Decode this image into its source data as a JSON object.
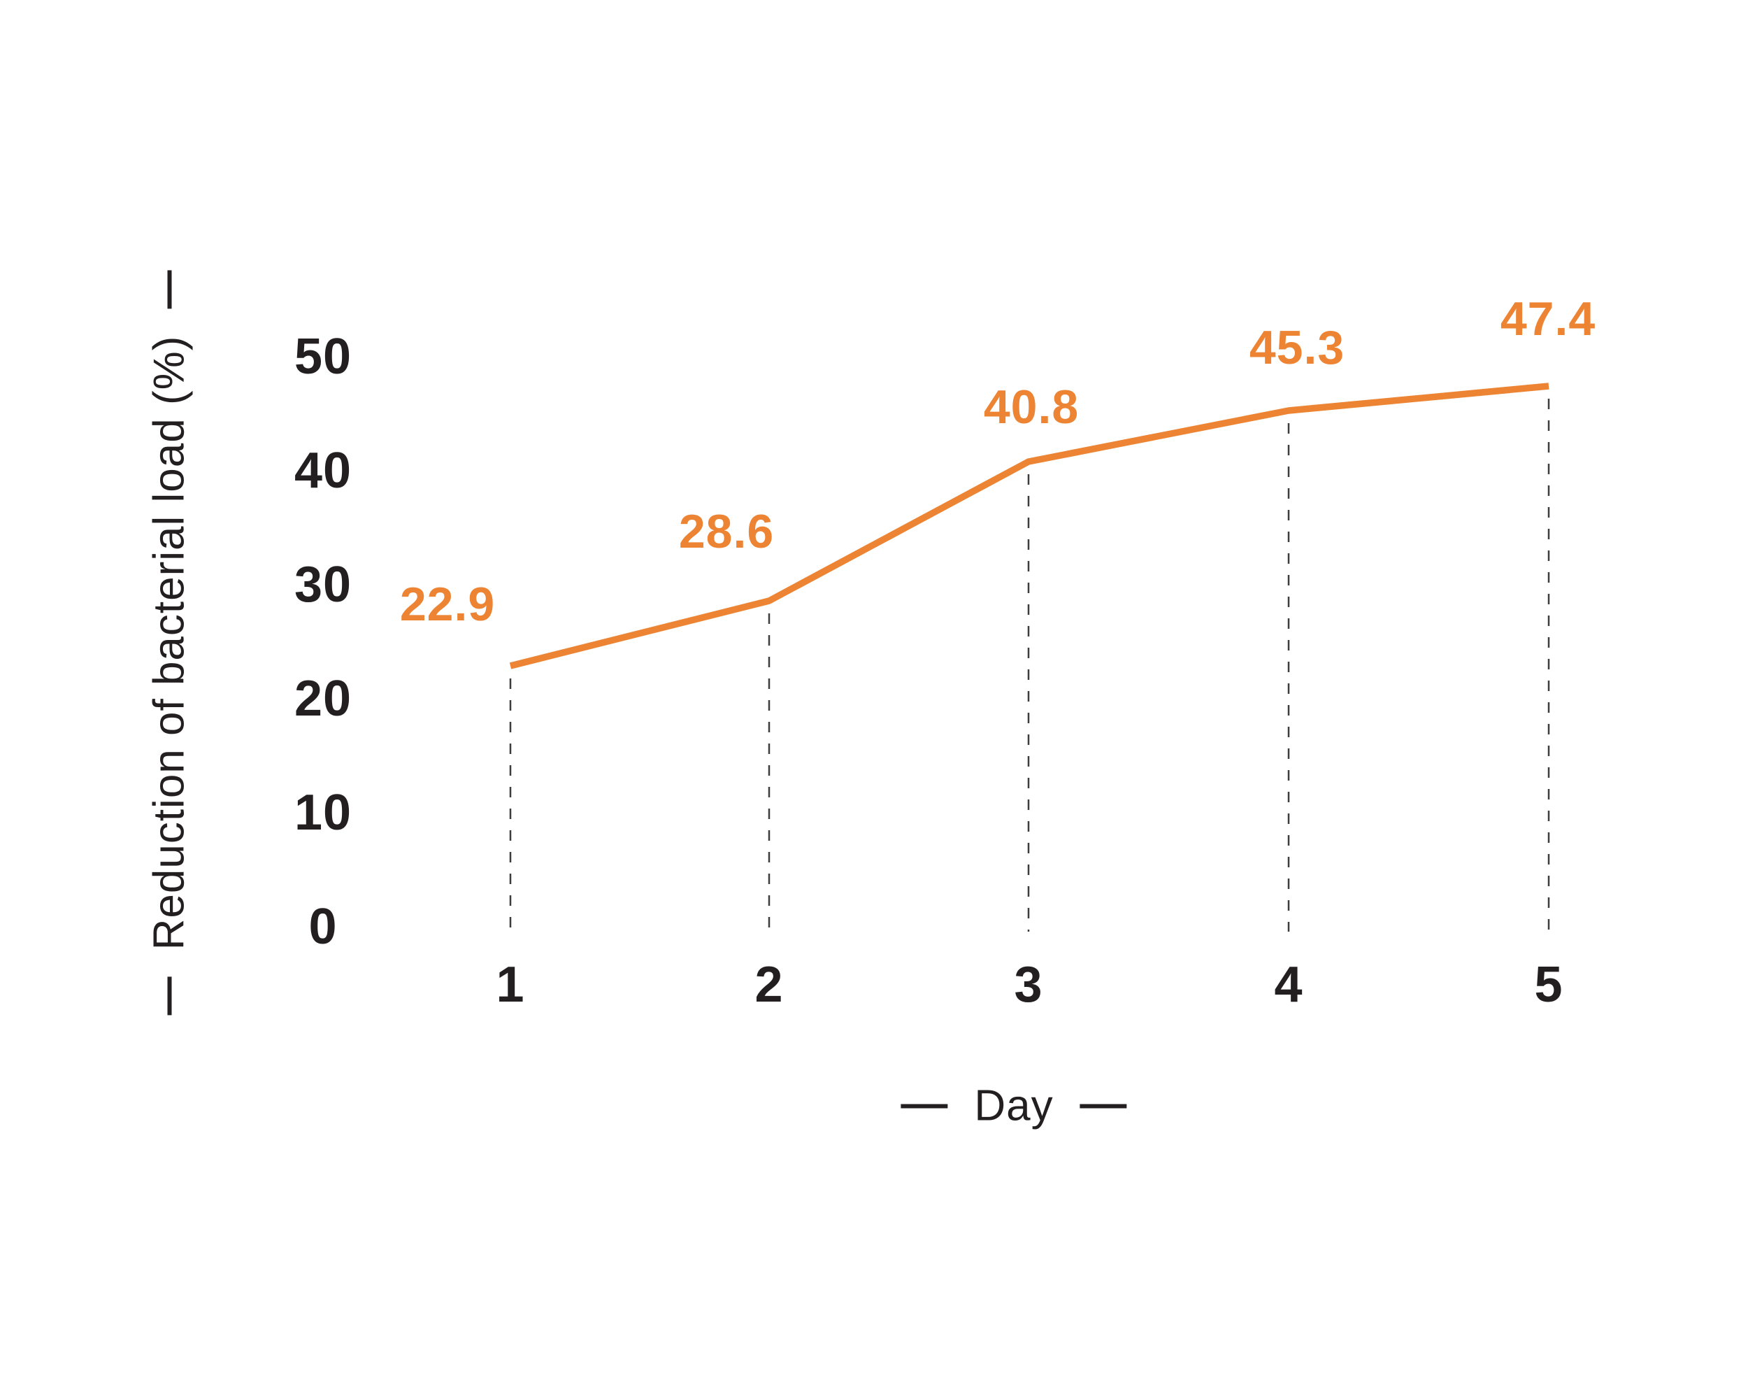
{
  "chart_data": {
    "type": "line",
    "title": "",
    "xlabel": "Day",
    "ylabel": "Reduction of bacterial load (%)",
    "x": [
      1,
      2,
      3,
      4,
      5
    ],
    "xticks": [
      "1",
      "2",
      "3",
      "4",
      "5"
    ],
    "yticks": [
      0,
      10,
      20,
      30,
      40,
      50
    ],
    "ylim": [
      0,
      55
    ],
    "series": [
      {
        "name": "Reduction of bacterial load (%)",
        "values": [
          22.9,
          28.6,
          40.8,
          45.3,
          47.4
        ]
      }
    ],
    "point_labels": [
      "22.9",
      "28.6",
      "40.8",
      "45.3",
      "47.4"
    ],
    "grid": false,
    "legend": "none",
    "markers": false,
    "guides": "dashed vertical line from each data point down to baseline",
    "colors": {
      "line": "#EC8433",
      "point_labels": "#EC8433",
      "axis_text": "#231F20",
      "guide_dash": "#3D3D3D"
    }
  }
}
